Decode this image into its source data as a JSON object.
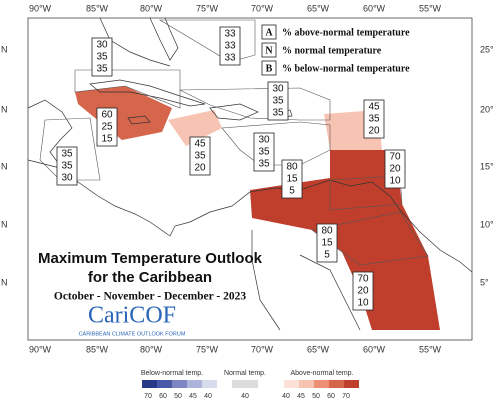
{
  "map": {
    "lon_top": [
      "90°W",
      "85°W",
      "80°W",
      "75°W",
      "70°W",
      "65°W",
      "60°W",
      "55°W"
    ],
    "lon_bottom": [
      "90°W",
      "85°W",
      "80°W",
      "75°W",
      "70°W",
      "65°W",
      "60°W",
      "55°W"
    ],
    "lat_left": [
      "N",
      "N",
      "N",
      "N",
      "N"
    ],
    "lat_right": [
      "25°",
      "20°",
      "15°",
      "10°",
      "5°"
    ]
  },
  "legend": [
    {
      "letter": "A",
      "text": "% above-normal temperature"
    },
    {
      "letter": "N",
      "text": "% normal temperature"
    },
    {
      "letter": "B",
      "text": "% below-normal temperature"
    }
  ],
  "regions": [
    [
      30,
      35,
      35
    ],
    [
      33,
      33,
      33
    ],
    [
      30,
      35,
      35
    ],
    [
      60,
      25,
      15
    ],
    [
      45,
      35,
      20
    ],
    [
      35,
      35,
      30
    ],
    [
      30,
      35,
      35
    ],
    [
      45,
      35,
      20
    ],
    [
      70,
      20,
      10
    ],
    [
      80,
      15,
      5
    ],
    [
      80,
      15,
      5
    ],
    [
      70,
      20,
      10
    ]
  ],
  "title": {
    "line1": "Maximum Temperature Outlook",
    "line2": "for the Caribbean",
    "period": "October - November - December - 2023",
    "logo": "CariCOF",
    "logo_sub": "CARIBBEAN CLIMATE OUTLOOK FORUM"
  },
  "colorbar": {
    "below_label": "Below-normal temp.",
    "below_ticks": [
      70,
      60,
      50,
      45,
      40
    ],
    "normal_label": "Normal temp.",
    "normal_ticks": [
      40
    ],
    "above_label": "Above-normal temp.",
    "above_ticks": [
      40,
      45,
      50,
      60,
      70
    ]
  }
}
